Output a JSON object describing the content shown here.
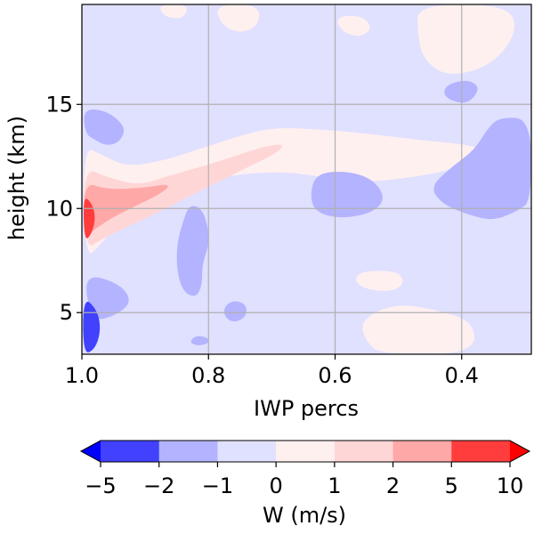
{
  "chart_data": {
    "type": "heatmap",
    "title": "",
    "xlabel": "IWP percs",
    "ylabel": "height (km)",
    "xlim": [
      1.0,
      0.29
    ],
    "ylim": [
      3.0,
      19.8
    ],
    "x_ticks": [
      1.0,
      0.8,
      0.6,
      0.4
    ],
    "x_tick_labels": [
      "1.0",
      "0.8",
      "0.6",
      "0.4"
    ],
    "y_ticks": [
      5,
      10,
      15
    ],
    "y_tick_labels": [
      "5",
      "10",
      "15"
    ],
    "grid": true,
    "colorbar": {
      "label": "W (m/s)",
      "orientation": "horizontal",
      "placement": "bottom",
      "extend": "both",
      "levels": [
        -5,
        -2,
        -1,
        0,
        1,
        2,
        5,
        10
      ],
      "tick_labels": [
        "−5",
        "−2",
        "−1",
        "0",
        "1",
        "2",
        "5",
        "10"
      ],
      "colors": [
        "#4141fe",
        "#b3b3ff",
        "#e0e0ff",
        "#fff0f0",
        "#ffd6d6",
        "#ffa8a8",
        "#ff3d3d"
      ],
      "under_color": "#0000ff",
      "over_color": "#ff0000"
    },
    "regions": [
      {
        "level": "-1..0",
        "points": [
          [
            1.0,
            3.0
          ],
          [
            0.29,
            3.0
          ],
          [
            0.29,
            19.8
          ],
          [
            1.0,
            19.8
          ]
        ]
      },
      {
        "level": "0..1",
        "points": [
          [
            0.998,
            13.0
          ],
          [
            0.97,
            12.6
          ],
          [
            0.93,
            12.0
          ],
          [
            0.87,
            12.3
          ],
          [
            0.81,
            12.9
          ],
          [
            0.76,
            13.4
          ],
          [
            0.7,
            13.9
          ],
          [
            0.62,
            13.8
          ],
          [
            0.55,
            13.6
          ],
          [
            0.47,
            13.3
          ],
          [
            0.4,
            13.1
          ],
          [
            0.37,
            12.9
          ],
          [
            0.37,
            12.5
          ],
          [
            0.42,
            11.8
          ],
          [
            0.5,
            11.4
          ],
          [
            0.55,
            11.3
          ],
          [
            0.6,
            11.4
          ],
          [
            0.68,
            11.8
          ],
          [
            0.77,
            11.6
          ],
          [
            0.86,
            10.9
          ],
          [
            0.93,
            9.7
          ],
          [
            0.97,
            8.3
          ],
          [
            0.995,
            7.5
          ]
        ]
      },
      {
        "level": "0..1",
        "points": [
          [
            0.53,
            3.0
          ],
          [
            0.38,
            3.0
          ],
          [
            0.38,
            4.6
          ],
          [
            0.45,
            5.2
          ],
          [
            0.5,
            5.4
          ],
          [
            0.54,
            5.0
          ],
          [
            0.56,
            4.4
          ],
          [
            0.55,
            3.6
          ]
        ]
      },
      {
        "level": "0..1",
        "points": [
          [
            0.56,
            7.0
          ],
          [
            0.5,
            7.0
          ],
          [
            0.49,
            6.4
          ],
          [
            0.51,
            6.0
          ],
          [
            0.55,
            6.1
          ],
          [
            0.57,
            6.5
          ]
        ]
      },
      {
        "level": "0..1",
        "points": [
          [
            0.47,
            19.8
          ],
          [
            0.33,
            19.8
          ],
          [
            0.31,
            18.6
          ],
          [
            0.35,
            16.9
          ],
          [
            0.42,
            16.3
          ],
          [
            0.46,
            17.1
          ],
          [
            0.47,
            18.4
          ]
        ]
      },
      {
        "level": "0..1",
        "points": [
          [
            0.79,
            19.8
          ],
          [
            0.72,
            19.8
          ],
          [
            0.72,
            18.8
          ],
          [
            0.75,
            18.4
          ],
          [
            0.78,
            18.8
          ]
        ]
      },
      {
        "level": "0..1",
        "points": [
          [
            0.88,
            19.8
          ],
          [
            0.83,
            19.8
          ],
          [
            0.84,
            19.1
          ],
          [
            0.87,
            19.2
          ]
        ]
      },
      {
        "level": "0..1",
        "points": [
          [
            0.6,
            19.2
          ],
          [
            0.56,
            19.3
          ],
          [
            0.54,
            18.7
          ],
          [
            0.56,
            18.2
          ],
          [
            0.59,
            18.5
          ]
        ]
      },
      {
        "level": "1..2",
        "points": [
          [
            0.998,
            12.0
          ],
          [
            0.96,
            11.5
          ],
          [
            0.91,
            11.1
          ],
          [
            0.86,
            11.6
          ],
          [
            0.8,
            12.1
          ],
          [
            0.75,
            12.6
          ],
          [
            0.71,
            13.0
          ],
          [
            0.68,
            13.1
          ],
          [
            0.69,
            12.7
          ],
          [
            0.73,
            12.1
          ],
          [
            0.77,
            11.5
          ],
          [
            0.83,
            10.6
          ],
          [
            0.88,
            9.8
          ],
          [
            0.93,
            9.1
          ],
          [
            0.97,
            8.5
          ],
          [
            0.995,
            8.0
          ]
        ]
      },
      {
        "level": "2..5",
        "points": [
          [
            0.998,
            11.3
          ],
          [
            0.96,
            10.9
          ],
          [
            0.9,
            11.0
          ],
          [
            0.86,
            11.2
          ],
          [
            0.87,
            10.8
          ],
          [
            0.91,
            10.2
          ],
          [
            0.95,
            9.6
          ],
          [
            0.98,
            9.0
          ],
          [
            0.995,
            8.6
          ]
        ]
      },
      {
        "level": "5..10",
        "points": [
          [
            0.998,
            10.6
          ],
          [
            0.985,
            10.3
          ],
          [
            0.978,
            9.6
          ],
          [
            0.984,
            8.8
          ],
          [
            0.996,
            8.4
          ]
        ]
      },
      {
        "level": "-2..-1",
        "points": [
          [
            0.998,
            14.8
          ],
          [
            0.96,
            14.7
          ],
          [
            0.93,
            13.9
          ],
          [
            0.94,
            13.2
          ],
          [
            0.96,
            13.0
          ],
          [
            0.98,
            13.3
          ],
          [
            0.995,
            13.6
          ]
        ]
      },
      {
        "level": "-2..-1",
        "points": [
          [
            0.63,
            11.7
          ],
          [
            0.58,
            11.8
          ],
          [
            0.54,
            11.4
          ],
          [
            0.52,
            10.5
          ],
          [
            0.54,
            9.8
          ],
          [
            0.59,
            9.5
          ],
          [
            0.63,
            9.8
          ],
          [
            0.64,
            10.6
          ]
        ]
      },
      {
        "level": "-2..-1",
        "points": [
          [
            0.29,
            14.3
          ],
          [
            0.34,
            14.4
          ],
          [
            0.36,
            13.8
          ],
          [
            0.38,
            12.8
          ],
          [
            0.42,
            11.9
          ],
          [
            0.45,
            11.0
          ],
          [
            0.43,
            10.2
          ],
          [
            0.39,
            9.7
          ],
          [
            0.35,
            9.4
          ],
          [
            0.31,
            9.9
          ],
          [
            0.29,
            10.4
          ]
        ]
      },
      {
        "level": "-2..-1",
        "points": [
          [
            0.83,
            10.2
          ],
          [
            0.81,
            10.0
          ],
          [
            0.8,
            9.0
          ],
          [
            0.8,
            8.2
          ],
          [
            0.81,
            7.3
          ],
          [
            0.81,
            6.3
          ],
          [
            0.82,
            5.7
          ],
          [
            0.84,
            6.0
          ],
          [
            0.85,
            7.0
          ],
          [
            0.85,
            8.3
          ],
          [
            0.84,
            9.4
          ]
        ]
      },
      {
        "level": "-2..-1",
        "points": [
          [
            0.998,
            6.9
          ],
          [
            0.94,
            6.4
          ],
          [
            0.92,
            5.5
          ],
          [
            0.95,
            4.8
          ],
          [
            0.985,
            4.6
          ]
        ]
      },
      {
        "level": "-2..-1",
        "points": [
          [
            0.42,
            16.0
          ],
          [
            0.39,
            16.2
          ],
          [
            0.37,
            15.8
          ],
          [
            0.39,
            15.0
          ],
          [
            0.42,
            15.2
          ],
          [
            0.43,
            15.6
          ]
        ]
      },
      {
        "level": "-2..-1",
        "points": [
          [
            0.76,
            5.6
          ],
          [
            0.74,
            5.4
          ],
          [
            0.74,
            4.8
          ],
          [
            0.76,
            4.5
          ],
          [
            0.775,
            4.8
          ],
          [
            0.775,
            5.3
          ]
        ]
      },
      {
        "level": "-2..-1",
        "points": [
          [
            0.82,
            3.9
          ],
          [
            0.8,
            3.8
          ],
          [
            0.8,
            3.5
          ],
          [
            0.82,
            3.4
          ],
          [
            0.83,
            3.6
          ]
        ]
      },
      {
        "level": "-5..-2",
        "points": [
          [
            0.998,
            5.8
          ],
          [
            0.975,
            5.1
          ],
          [
            0.97,
            4.1
          ],
          [
            0.98,
            3.2
          ],
          [
            0.998,
            3.0
          ]
        ]
      }
    ]
  }
}
